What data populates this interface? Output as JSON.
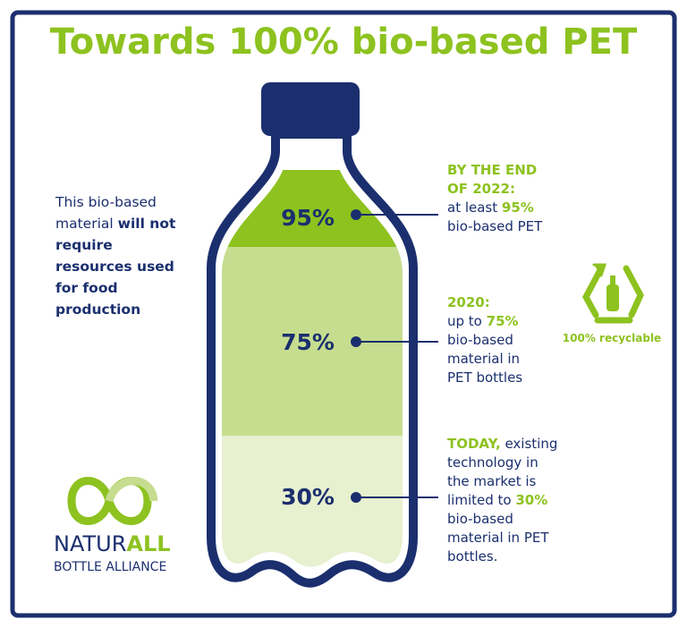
{
  "title": "Towards 100% bio-based PET",
  "left_note": {
    "plain": "This bio-based material",
    "bold": "will not require resources used for food production"
  },
  "bottle": {
    "levels": [
      "95%",
      "75%",
      "30%"
    ]
  },
  "callouts": [
    {
      "lead": "BY THE END OF 2022:",
      "before": "at least",
      "highlight": "95%",
      "after": "bio-based PET"
    },
    {
      "lead": "2020:",
      "before": "up to",
      "highlight": "75%",
      "after": "bio-based material in PET bottles"
    },
    {
      "lead": "TODAY,",
      "before": "existing technology in the market is limited to",
      "highlight": "30%",
      "after": "bio-based material in PET bottles."
    }
  ],
  "recycle": {
    "label": "100% recyclable"
  },
  "logo": {
    "name_a": "NATUR",
    "name_b": "ALL",
    "sub": "BOTTLE ALLIANCE"
  }
}
